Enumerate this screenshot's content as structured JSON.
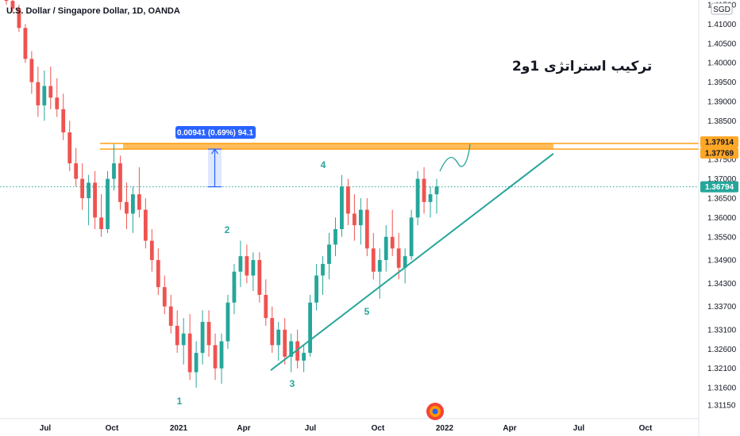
{
  "header": {
    "symbol_line": "U.S. Dollar / Singapore Dollar, 1D, OANDA",
    "currency": "SGD"
  },
  "annotation_title": "ترکیب استراتژی 1و2",
  "measure_label": "0.00941 (0.69%) 94.1",
  "price_tags": [
    {
      "value": "1.37914",
      "price": 1.37914,
      "bg": "#ffa726",
      "text": "dark"
    },
    {
      "value": "1.37769",
      "price": 1.37769,
      "bg": "#ffa726",
      "text": "dark"
    },
    {
      "value": "1.36794",
      "price": 1.36794,
      "bg": "#26a69a",
      "text": "light"
    }
  ],
  "chart_data": {
    "type": "candlestick",
    "y_ticks": [
      "1.41500",
      "1.41000",
      "1.40500",
      "1.40000",
      "1.39500",
      "1.39000",
      "1.38500",
      "1.37500",
      "1.37000",
      "1.36500",
      "1.36000",
      "1.35500",
      "1.34900",
      "1.34300",
      "1.33700",
      "1.33100",
      "1.32600",
      "1.32100",
      "1.31600",
      "1.31150"
    ],
    "y_tick_values": [
      1.415,
      1.41,
      1.405,
      1.4,
      1.395,
      1.39,
      1.385,
      1.375,
      1.37,
      1.365,
      1.36,
      1.355,
      1.349,
      1.343,
      1.337,
      1.331,
      1.326,
      1.321,
      1.316,
      1.3115
    ],
    "x_ticks": [
      "Jul",
      "Oct",
      "2021",
      "Apr",
      "Jul",
      "Oct",
      "2022",
      "Apr",
      "Jul",
      "Oct"
    ],
    "x_tick_dates": [
      "2020-07",
      "2020-10",
      "2021-01",
      "2021-04",
      "2021-07",
      "2021-10",
      "2022-01",
      "2022-04",
      "2022-07",
      "2022-10"
    ],
    "resistance_zone": [
      1.37769,
      1.37914
    ],
    "current_price": 1.36794,
    "wave_labels": [
      {
        "label": "1",
        "date": "2021-01",
        "price": 1.3145
      },
      {
        "label": "2",
        "date": "2021-02",
        "price": 1.3575
      },
      {
        "label": "3",
        "date": "2021-05",
        "price": 1.318
      },
      {
        "label": "4",
        "date": "2021-07",
        "price": 1.371
      },
      {
        "label": "5",
        "date": "2021-09",
        "price": 1.3345
      }
    ],
    "trendline": {
      "from": {
        "date": "2021-05",
        "price": 1.3205
      },
      "to": {
        "date": "2022-04",
        "price": 1.3765
      }
    },
    "ohlc_path": [
      [
        1.417,
        1.418,
        1.415,
        1.416
      ],
      [
        1.416,
        1.418,
        1.413,
        1.414
      ],
      [
        1.414,
        1.415,
        1.408,
        1.409
      ],
      [
        1.409,
        1.41,
        1.4,
        1.401
      ],
      [
        1.401,
        1.403,
        1.392,
        1.395
      ],
      [
        1.395,
        1.399,
        1.386,
        1.389
      ],
      [
        1.389,
        1.398,
        1.385,
        1.394
      ],
      [
        1.394,
        1.399,
        1.388,
        1.391
      ],
      [
        1.391,
        1.396,
        1.386,
        1.388
      ],
      [
        1.388,
        1.392,
        1.38,
        1.382
      ],
      [
        1.382,
        1.385,
        1.372,
        1.374
      ],
      [
        1.374,
        1.378,
        1.368,
        1.37
      ],
      [
        1.37,
        1.374,
        1.362,
        1.365
      ],
      [
        1.365,
        1.371,
        1.358,
        1.369
      ],
      [
        1.369,
        1.372,
        1.357,
        1.36
      ],
      [
        1.36,
        1.366,
        1.355,
        1.357
      ],
      [
        1.357,
        1.372,
        1.356,
        1.37
      ],
      [
        1.37,
        1.379,
        1.367,
        1.374
      ],
      [
        1.374,
        1.376,
        1.362,
        1.364
      ],
      [
        1.364,
        1.369,
        1.357,
        1.361
      ],
      [
        1.361,
        1.368,
        1.356,
        1.366
      ],
      [
        1.366,
        1.373,
        1.36,
        1.362
      ],
      [
        1.362,
        1.365,
        1.352,
        1.354
      ],
      [
        1.354,
        1.357,
        1.346,
        1.349
      ],
      [
        1.349,
        1.352,
        1.34,
        1.342
      ],
      [
        1.342,
        1.345,
        1.335,
        1.337
      ],
      [
        1.337,
        1.34,
        1.33,
        1.332
      ],
      [
        1.332,
        1.336,
        1.325,
        1.327
      ],
      [
        1.327,
        1.334,
        1.322,
        1.33
      ],
      [
        1.33,
        1.335,
        1.318,
        1.32
      ],
      [
        1.32,
        1.328,
        1.316,
        1.325
      ],
      [
        1.325,
        1.336,
        1.322,
        1.333
      ],
      [
        1.333,
        1.336,
        1.324,
        1.327
      ],
      [
        1.327,
        1.33,
        1.318,
        1.321
      ],
      [
        1.321,
        1.33,
        1.317,
        1.328
      ],
      [
        1.328,
        1.34,
        1.326,
        1.338
      ],
      [
        1.338,
        1.348,
        1.335,
        1.346
      ],
      [
        1.346,
        1.354,
        1.342,
        1.35
      ],
      [
        1.35,
        1.353,
        1.343,
        1.345
      ],
      [
        1.345,
        1.351,
        1.341,
        1.349
      ],
      [
        1.349,
        1.351,
        1.338,
        1.34
      ],
      [
        1.34,
        1.344,
        1.332,
        1.334
      ],
      [
        1.334,
        1.337,
        1.325,
        1.327
      ],
      [
        1.327,
        1.333,
        1.323,
        1.331
      ],
      [
        1.331,
        1.334,
        1.322,
        1.324
      ],
      [
        1.324,
        1.33,
        1.32,
        1.328
      ],
      [
        1.328,
        1.331,
        1.321,
        1.323
      ],
      [
        1.323,
        1.327,
        1.32,
        1.325
      ],
      [
        1.325,
        1.34,
        1.324,
        1.338
      ],
      [
        1.338,
        1.348,
        1.336,
        1.345
      ],
      [
        1.345,
        1.35,
        1.34,
        1.348
      ],
      [
        1.348,
        1.356,
        1.344,
        1.353
      ],
      [
        1.353,
        1.36,
        1.35,
        1.357
      ],
      [
        1.357,
        1.371,
        1.355,
        1.368
      ],
      [
        1.368,
        1.37,
        1.358,
        1.361
      ],
      [
        1.361,
        1.366,
        1.354,
        1.358
      ],
      [
        1.358,
        1.365,
        1.353,
        1.362
      ],
      [
        1.362,
        1.365,
        1.35,
        1.352
      ],
      [
        1.352,
        1.356,
        1.344,
        1.346
      ],
      [
        1.346,
        1.352,
        1.339,
        1.349
      ],
      [
        1.349,
        1.358,
        1.346,
        1.355
      ],
      [
        1.355,
        1.362,
        1.35,
        1.352
      ],
      [
        1.352,
        1.356,
        1.344,
        1.347
      ],
      [
        1.347,
        1.352,
        1.343,
        1.35
      ],
      [
        1.35,
        1.362,
        1.349,
        1.36
      ],
      [
        1.36,
        1.372,
        1.358,
        1.37
      ],
      [
        1.37,
        1.373,
        1.361,
        1.364
      ],
      [
        1.364,
        1.368,
        1.36,
        1.366
      ],
      [
        1.366,
        1.37,
        1.361,
        1.368
      ]
    ]
  }
}
